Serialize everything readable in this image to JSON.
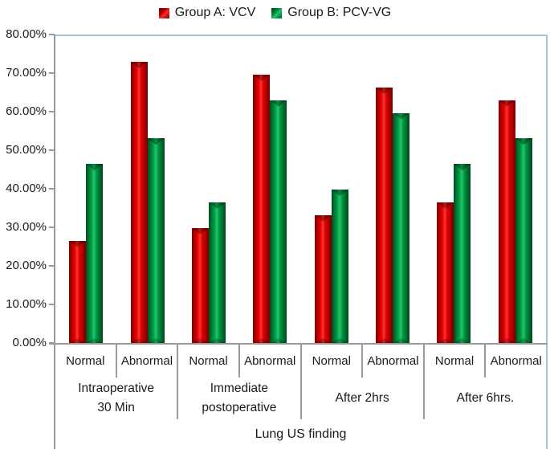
{
  "chart_data": {
    "type": "bar",
    "title": "",
    "xlabel": "Lung US finding",
    "ylabel": "",
    "ylim": [
      0,
      80
    ],
    "ytick_labels": [
      "80.00%",
      "70.00%",
      "60.00%",
      "50.00%",
      "40.00%",
      "30.00%",
      "20.00%",
      "10.00%",
      "0.00%"
    ],
    "grid": false,
    "legend_position": "top-center",
    "colors": {
      "group_a_red": "#d40000",
      "group_b_green": "#00a04a",
      "plot_border_blue": "#9dc3e6",
      "axis_gray": "#9a9a9a"
    },
    "series": [
      {
        "name": "Group A: VCV",
        "color": "#d40000"
      },
      {
        "name": "Group B: PCV-VG",
        "color": "#00a04a"
      }
    ],
    "groups": [
      {
        "label": "Intraoperative\n30 Min",
        "categories": [
          "Normal",
          "Abnormal"
        ],
        "values": [
          [
            26.67,
            46.67
          ],
          [
            73.33,
            53.33
          ]
        ]
      },
      {
        "label": "Immediate\npostoperative",
        "categories": [
          "Normal",
          "Abnormal"
        ],
        "values": [
          [
            30.0,
            36.67
          ],
          [
            70.0,
            63.33
          ]
        ]
      },
      {
        "label": "After 2hrs",
        "categories": [
          "Normal",
          "Abnormal"
        ],
        "values": [
          [
            33.33,
            40.0
          ],
          [
            66.67,
            60.0
          ]
        ]
      },
      {
        "label": "After 6hrs.",
        "categories": [
          "Normal",
          "Abnormal"
        ],
        "values": [
          [
            36.67,
            46.67
          ],
          [
            63.33,
            53.33
          ]
        ]
      }
    ],
    "values_note": "values arrays are [Group A: VCV, Group B: PCV-VG] percentages per category"
  }
}
